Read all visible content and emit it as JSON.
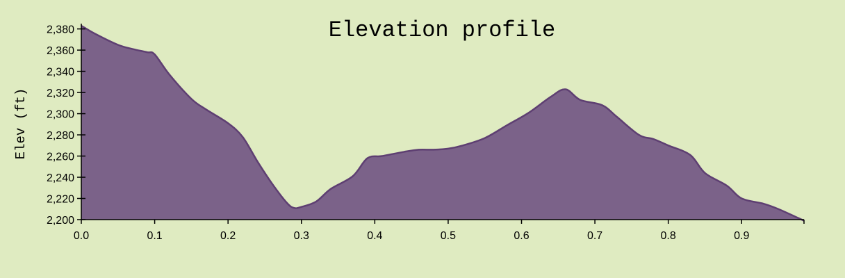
{
  "chart_data": {
    "type": "area",
    "title": "Elevation profile",
    "xlabel": "",
    "ylabel": "Elev (ft)",
    "xlim": [
      0,
      0.985
    ],
    "ylim": [
      2200,
      2385
    ],
    "xticks": [
      0.0,
      0.1,
      0.2,
      0.3,
      0.4,
      0.5,
      0.6,
      0.7,
      0.8,
      0.9
    ],
    "xtick_labels": [
      "0.0",
      "0.1",
      "0.2",
      "0.3",
      "0.4",
      "0.5",
      "0.6",
      "0.7",
      "0.8",
      "0.9"
    ],
    "yticks": [
      2200,
      2220,
      2240,
      2260,
      2280,
      2300,
      2320,
      2340,
      2360,
      2380
    ],
    "ytick_labels": [
      "2,200",
      "2,220",
      "2,240",
      "2,260",
      "2,280",
      "2,300",
      "2,320",
      "2,340",
      "2,360",
      "2,380"
    ],
    "grid": false,
    "fill_color": "#7b6289",
    "line_color": "#5e3f72",
    "x": [
      0.0,
      0.02,
      0.05,
      0.07,
      0.09,
      0.1,
      0.12,
      0.15,
      0.17,
      0.2,
      0.22,
      0.24,
      0.26,
      0.28,
      0.29,
      0.3,
      0.32,
      0.34,
      0.37,
      0.39,
      0.41,
      0.44,
      0.46,
      0.48,
      0.5,
      0.52,
      0.55,
      0.58,
      0.61,
      0.64,
      0.66,
      0.68,
      0.71,
      0.73,
      0.76,
      0.78,
      0.8,
      0.83,
      0.85,
      0.88,
      0.9,
      0.93,
      0.95,
      0.985
    ],
    "y": [
      2383,
      2375,
      2365,
      2361,
      2358,
      2356,
      2337,
      2314,
      2304,
      2291,
      2278,
      2255,
      2234,
      2216,
      2211,
      2212,
      2217,
      2229,
      2241,
      2258,
      2260,
      2264,
      2266,
      2266,
      2267,
      2270,
      2277,
      2289,
      2301,
      2316,
      2323,
      2313,
      2308,
      2297,
      2280,
      2276,
      2270,
      2261,
      2244,
      2232,
      2220,
      2215,
      2210,
      2199
    ]
  }
}
